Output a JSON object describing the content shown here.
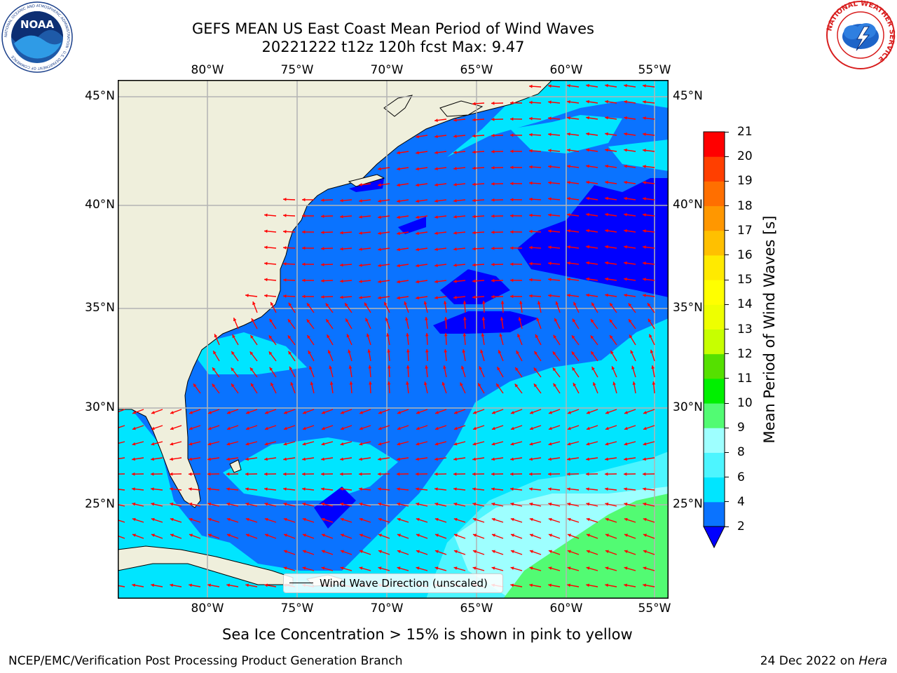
{
  "header": {
    "title_line1": "GEFS MEAN US East Coast Mean Period of Wind Waves",
    "title_line2": "20221222 t12z 120h fcst   Max: 9.47"
  },
  "map": {
    "lon_labels": [
      "80°W",
      "75°W",
      "70°W",
      "65°W",
      "60°W",
      "55°W"
    ],
    "lat_labels": [
      "45°N",
      "40°N",
      "35°N",
      "30°N",
      "25°N"
    ],
    "legend_label": "Wind Wave Direction (unscaled)",
    "land_color": "#efefdc",
    "arrow_color": "#ff0000"
  },
  "colorbar": {
    "label": "Mean Period of Wind Waves [s]",
    "ticks": [
      "2",
      "4",
      "6",
      "8",
      "9",
      "10",
      "11",
      "12",
      "13",
      "14",
      "15",
      "16",
      "17",
      "18",
      "19",
      "20",
      "21"
    ],
    "colors": [
      "#0a73ff",
      "#00e5ff",
      "#4df5ff",
      "#9effff",
      "#52fb73",
      "#00f000",
      "#55e000",
      "#c7ff00",
      "#eeff00",
      "#ffff00",
      "#ffea00",
      "#ffc000",
      "#ff9700",
      "#ff6f00",
      "#ff3f00",
      "#ff0000"
    ],
    "under_color": "#0000ff"
  },
  "footer": {
    "sea_ice_note": "Sea Ice Concentration > 15% is shown in pink to yellow",
    "branch": "NCEP/EMC/Verification Post Processing Product Generation Branch",
    "date": "24 Dec 2022",
    "on_word": "on",
    "machine": "Hera"
  },
  "logos": {
    "left_text": "NOAA",
    "right_text": "NATIONAL WEATHER SERVICE"
  }
}
